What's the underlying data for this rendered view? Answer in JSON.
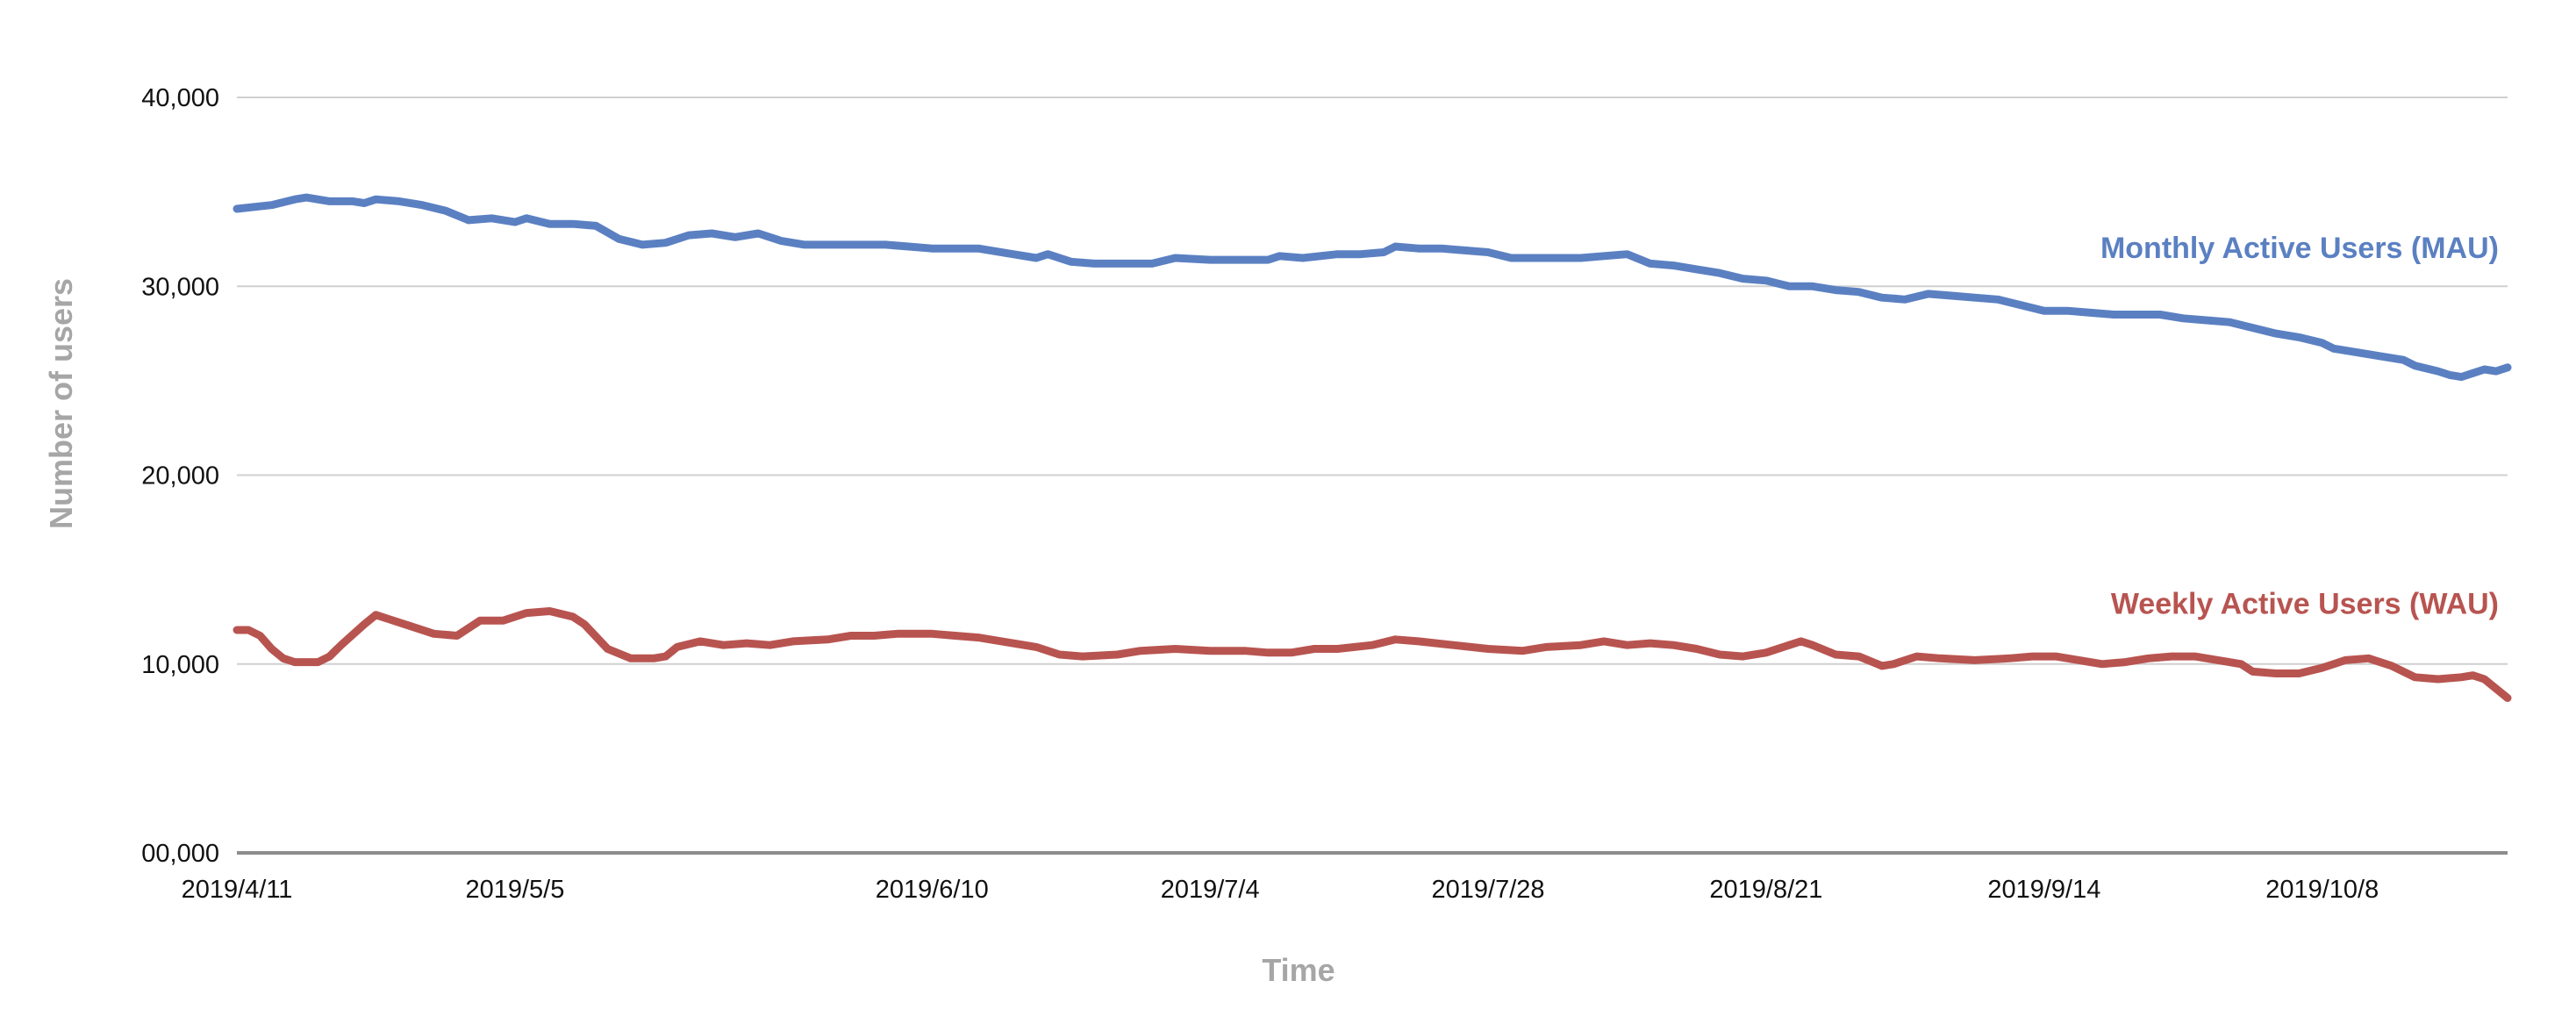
{
  "chart_data": {
    "type": "line",
    "title": "",
    "xlabel": "Time",
    "ylabel": "Number of users",
    "ylim": [
      0,
      40000
    ],
    "y_ticks": [
      0,
      10000,
      20000,
      30000,
      40000
    ],
    "y_tick_labels": [
      "00,000",
      "10,000",
      "20,000",
      "30,000",
      "40,000"
    ],
    "x_start": "2019/4/11",
    "x_end": "2019/10/24",
    "x_ticks": [
      "2019/4/11",
      "2019/5/5",
      "2019/6/10",
      "2019/7/4",
      "2019/7/28",
      "2019/8/21",
      "2019/9/14",
      "2019/10/8"
    ],
    "grid": true,
    "legend": "inline labels at right end of each line",
    "series": [
      {
        "name": "Monthly Active Users (MAU)",
        "color": "#5b80c2",
        "points": [
          [
            "2019/4/11",
            34100
          ],
          [
            "2019/4/14",
            34300
          ],
          [
            "2019/4/16",
            34600
          ],
          [
            "2019/4/17",
            34700
          ],
          [
            "2019/4/19",
            34500
          ],
          [
            "2019/4/21",
            34500
          ],
          [
            "2019/4/22",
            34400
          ],
          [
            "2019/4/23",
            34600
          ],
          [
            "2019/4/25",
            34500
          ],
          [
            "2019/4/27",
            34300
          ],
          [
            "2019/4/29",
            34000
          ],
          [
            "2019/5/1",
            33500
          ],
          [
            "2019/5/3",
            33600
          ],
          [
            "2019/5/5",
            33400
          ],
          [
            "2019/5/6",
            33600
          ],
          [
            "2019/5/8",
            33300
          ],
          [
            "2019/5/10",
            33300
          ],
          [
            "2019/5/12",
            33200
          ],
          [
            "2019/5/14",
            32500
          ],
          [
            "2019/5/16",
            32200
          ],
          [
            "2019/5/18",
            32300
          ],
          [
            "2019/5/20",
            32700
          ],
          [
            "2019/5/22",
            32800
          ],
          [
            "2019/5/24",
            32600
          ],
          [
            "2019/5/26",
            32800
          ],
          [
            "2019/5/28",
            32400
          ],
          [
            "2019/5/30",
            32200
          ],
          [
            "2019/6/2",
            32200
          ],
          [
            "2019/6/6",
            32200
          ],
          [
            "2019/6/8",
            32100
          ],
          [
            "2019/6/10",
            32000
          ],
          [
            "2019/6/14",
            32000
          ],
          [
            "2019/6/17",
            31700
          ],
          [
            "2019/6/19",
            31500
          ],
          [
            "2019/6/20",
            31700
          ],
          [
            "2019/6/22",
            31300
          ],
          [
            "2019/6/24",
            31200
          ],
          [
            "2019/6/27",
            31200
          ],
          [
            "2019/6/29",
            31200
          ],
          [
            "2019/7/1",
            31500
          ],
          [
            "2019/7/4",
            31400
          ],
          [
            "2019/7/7",
            31400
          ],
          [
            "2019/7/9",
            31400
          ],
          [
            "2019/7/10",
            31600
          ],
          [
            "2019/7/12",
            31500
          ],
          [
            "2019/7/15",
            31700
          ],
          [
            "2019/7/17",
            31700
          ],
          [
            "2019/7/19",
            31800
          ],
          [
            "2019/7/20",
            32100
          ],
          [
            "2019/7/22",
            32000
          ],
          [
            "2019/7/24",
            32000
          ],
          [
            "2019/7/26",
            31900
          ],
          [
            "2019/7/28",
            31800
          ],
          [
            "2019/7/30",
            31500
          ],
          [
            "2019/8/2",
            31500
          ],
          [
            "2019/8/5",
            31500
          ],
          [
            "2019/8/7",
            31600
          ],
          [
            "2019/8/9",
            31700
          ],
          [
            "2019/8/11",
            31200
          ],
          [
            "2019/8/13",
            31100
          ],
          [
            "2019/8/15",
            30900
          ],
          [
            "2019/8/17",
            30700
          ],
          [
            "2019/8/19",
            30400
          ],
          [
            "2019/8/21",
            30300
          ],
          [
            "2019/8/23",
            30000
          ],
          [
            "2019/8/25",
            30000
          ],
          [
            "2019/8/27",
            29800
          ],
          [
            "2019/8/29",
            29700
          ],
          [
            "2019/8/31",
            29400
          ],
          [
            "2019/9/2",
            29300
          ],
          [
            "2019/9/4",
            29600
          ],
          [
            "2019/9/6",
            29500
          ],
          [
            "2019/9/8",
            29400
          ],
          [
            "2019/9/10",
            29300
          ],
          [
            "2019/9/12",
            29000
          ],
          [
            "2019/9/14",
            28700
          ],
          [
            "2019/9/16",
            28700
          ],
          [
            "2019/9/18",
            28600
          ],
          [
            "2019/9/20",
            28500
          ],
          [
            "2019/9/22",
            28500
          ],
          [
            "2019/9/24",
            28500
          ],
          [
            "2019/9/26",
            28300
          ],
          [
            "2019/9/28",
            28200
          ],
          [
            "2019/9/30",
            28100
          ],
          [
            "2019/10/2",
            27800
          ],
          [
            "2019/10/4",
            27500
          ],
          [
            "2019/10/6",
            27300
          ],
          [
            "2019/10/8",
            27000
          ],
          [
            "2019/10/9",
            26700
          ],
          [
            "2019/10/11",
            26500
          ],
          [
            "2019/10/13",
            26300
          ],
          [
            "2019/10/15",
            26100
          ],
          [
            "2019/10/16",
            25800
          ],
          [
            "2019/10/18",
            25500
          ],
          [
            "2019/10/19",
            25300
          ],
          [
            "2019/10/20",
            25200
          ],
          [
            "2019/10/21",
            25400
          ],
          [
            "2019/10/22",
            25600
          ],
          [
            "2019/10/23",
            25500
          ],
          [
            "2019/10/24",
            25700
          ]
        ]
      },
      {
        "name": "Weekly Active Users (WAU)",
        "color": "#b85450",
        "points": [
          [
            "2019/4/11",
            11800
          ],
          [
            "2019/4/12",
            11800
          ],
          [
            "2019/4/13",
            11500
          ],
          [
            "2019/4/14",
            10800
          ],
          [
            "2019/4/15",
            10300
          ],
          [
            "2019/4/16",
            10100
          ],
          [
            "2019/4/18",
            10100
          ],
          [
            "2019/4/19",
            10400
          ],
          [
            "2019/4/20",
            11000
          ],
          [
            "2019/4/22",
            12100
          ],
          [
            "2019/4/23",
            12600
          ],
          [
            "2019/4/24",
            12400
          ],
          [
            "2019/4/26",
            12000
          ],
          [
            "2019/4/28",
            11600
          ],
          [
            "2019/4/30",
            11500
          ],
          [
            "2019/5/2",
            12300
          ],
          [
            "2019/5/4",
            12300
          ],
          [
            "2019/5/6",
            12700
          ],
          [
            "2019/5/8",
            12800
          ],
          [
            "2019/5/10",
            12500
          ],
          [
            "2019/5/11",
            12100
          ],
          [
            "2019/5/13",
            10800
          ],
          [
            "2019/5/15",
            10300
          ],
          [
            "2019/5/17",
            10300
          ],
          [
            "2019/5/18",
            10400
          ],
          [
            "2019/5/19",
            10900
          ],
          [
            "2019/5/21",
            11200
          ],
          [
            "2019/5/23",
            11000
          ],
          [
            "2019/5/25",
            11100
          ],
          [
            "2019/5/27",
            11000
          ],
          [
            "2019/5/29",
            11200
          ],
          [
            "2019/6/1",
            11300
          ],
          [
            "2019/6/3",
            11500
          ],
          [
            "2019/6/5",
            11500
          ],
          [
            "2019/6/7",
            11600
          ],
          [
            "2019/6/10",
            11600
          ],
          [
            "2019/6/12",
            11500
          ],
          [
            "2019/6/14",
            11400
          ],
          [
            "2019/6/16",
            11200
          ],
          [
            "2019/6/19",
            10900
          ],
          [
            "2019/6/21",
            10500
          ],
          [
            "2019/6/23",
            10400
          ],
          [
            "2019/6/26",
            10500
          ],
          [
            "2019/6/28",
            10700
          ],
          [
            "2019/7/1",
            10800
          ],
          [
            "2019/7/4",
            10700
          ],
          [
            "2019/7/7",
            10700
          ],
          [
            "2019/7/9",
            10600
          ],
          [
            "2019/7/11",
            10600
          ],
          [
            "2019/7/13",
            10800
          ],
          [
            "2019/7/15",
            10800
          ],
          [
            "2019/7/18",
            11000
          ],
          [
            "2019/7/20",
            11300
          ],
          [
            "2019/7/22",
            11200
          ],
          [
            "2019/7/25",
            11000
          ],
          [
            "2019/7/28",
            10800
          ],
          [
            "2019/7/31",
            10700
          ],
          [
            "2019/8/2",
            10900
          ],
          [
            "2019/8/5",
            11000
          ],
          [
            "2019/8/7",
            11200
          ],
          [
            "2019/8/9",
            11000
          ],
          [
            "2019/8/11",
            11100
          ],
          [
            "2019/8/13",
            11000
          ],
          [
            "2019/8/15",
            10800
          ],
          [
            "2019/8/17",
            10500
          ],
          [
            "2019/8/19",
            10400
          ],
          [
            "2019/8/21",
            10600
          ],
          [
            "2019/8/23",
            11000
          ],
          [
            "2019/8/24",
            11200
          ],
          [
            "2019/8/25",
            11000
          ],
          [
            "2019/8/27",
            10500
          ],
          [
            "2019/8/29",
            10400
          ],
          [
            "2019/8/31",
            9900
          ],
          [
            "2019/9/1",
            10000
          ],
          [
            "2019/9/3",
            10400
          ],
          [
            "2019/9/5",
            10300
          ],
          [
            "2019/9/8",
            10200
          ],
          [
            "2019/9/11",
            10300
          ],
          [
            "2019/9/13",
            10400
          ],
          [
            "2019/9/15",
            10400
          ],
          [
            "2019/9/17",
            10200
          ],
          [
            "2019/9/19",
            10000
          ],
          [
            "2019/9/21",
            10100
          ],
          [
            "2019/9/23",
            10300
          ],
          [
            "2019/9/25",
            10400
          ],
          [
            "2019/9/27",
            10400
          ],
          [
            "2019/9/29",
            10200
          ],
          [
            "2019/10/1",
            10000
          ],
          [
            "2019/10/2",
            9600
          ],
          [
            "2019/10/4",
            9500
          ],
          [
            "2019/10/6",
            9500
          ],
          [
            "2019/10/8",
            9800
          ],
          [
            "2019/10/10",
            10200
          ],
          [
            "2019/10/12",
            10300
          ],
          [
            "2019/10/14",
            9900
          ],
          [
            "2019/10/16",
            9300
          ],
          [
            "2019/10/18",
            9200
          ],
          [
            "2019/10/20",
            9300
          ],
          [
            "2019/10/21",
            9400
          ],
          [
            "2019/10/22",
            9200
          ],
          [
            "2019/10/23",
            8700
          ],
          [
            "2019/10/24",
            8200
          ]
        ]
      }
    ]
  }
}
